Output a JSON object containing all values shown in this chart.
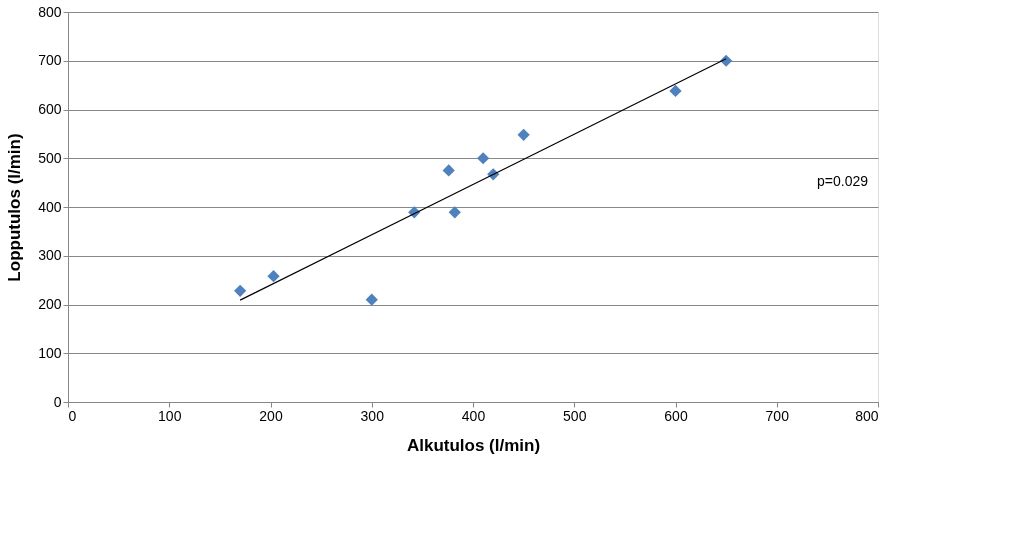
{
  "chart_data": {
    "type": "scatter",
    "xlabel": "Alkutulos (l/min)",
    "ylabel": "Lopputulos (l/min)",
    "series": [
      {
        "color": "#4f81bd",
        "marker": "diamond",
        "x": [
          170,
          203,
          300,
          342,
          376,
          382,
          410,
          420,
          450,
          600,
          650
        ],
        "values": [
          228,
          258,
          210,
          389,
          475,
          389,
          500,
          467,
          548,
          638,
          700
        ]
      },
      {
        "type": "line",
        "color": "#000000",
        "marker": "none",
        "x": [
          170,
          650
        ],
        "values": [
          209,
          704
        ]
      }
    ],
    "xlim": [
      0,
      800
    ],
    "xticks": [
      0,
      100,
      200,
      300,
      400,
      500,
      600,
      700,
      800
    ],
    "ylim": [
      0,
      800
    ],
    "yticks": [
      0,
      100,
      200,
      300,
      400,
      500,
      600,
      700,
      800
    ],
    "grid": "y",
    "annotations": [
      "p=0.029"
    ]
  }
}
